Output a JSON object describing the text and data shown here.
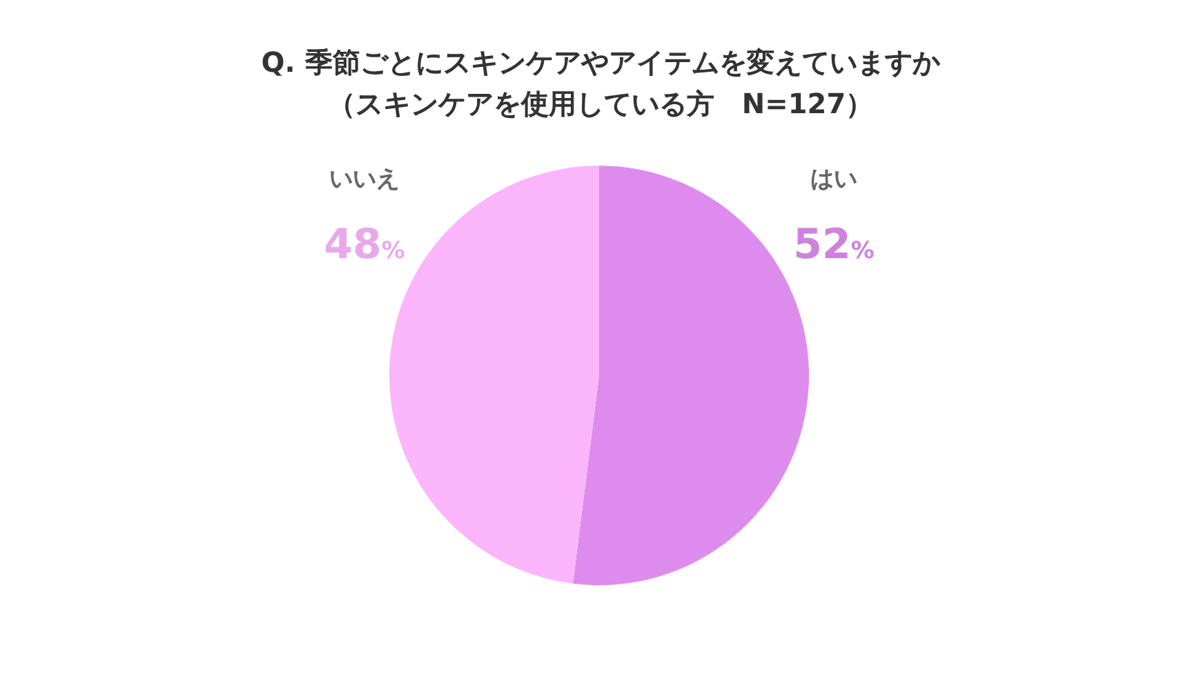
{
  "chart_data": {
    "type": "pie",
    "title": "Q. 季節ごとにスキンケアやアイテムを変えていますか",
    "subtitle": "（スキンケアを使用している方　N=127）",
    "categories": [
      "はい",
      "いいえ"
    ],
    "values": [
      52,
      48
    ],
    "colors": [
      "#dd8cee",
      "#fbb6fb"
    ],
    "value_labels": [
      "52%",
      "48%"
    ]
  }
}
